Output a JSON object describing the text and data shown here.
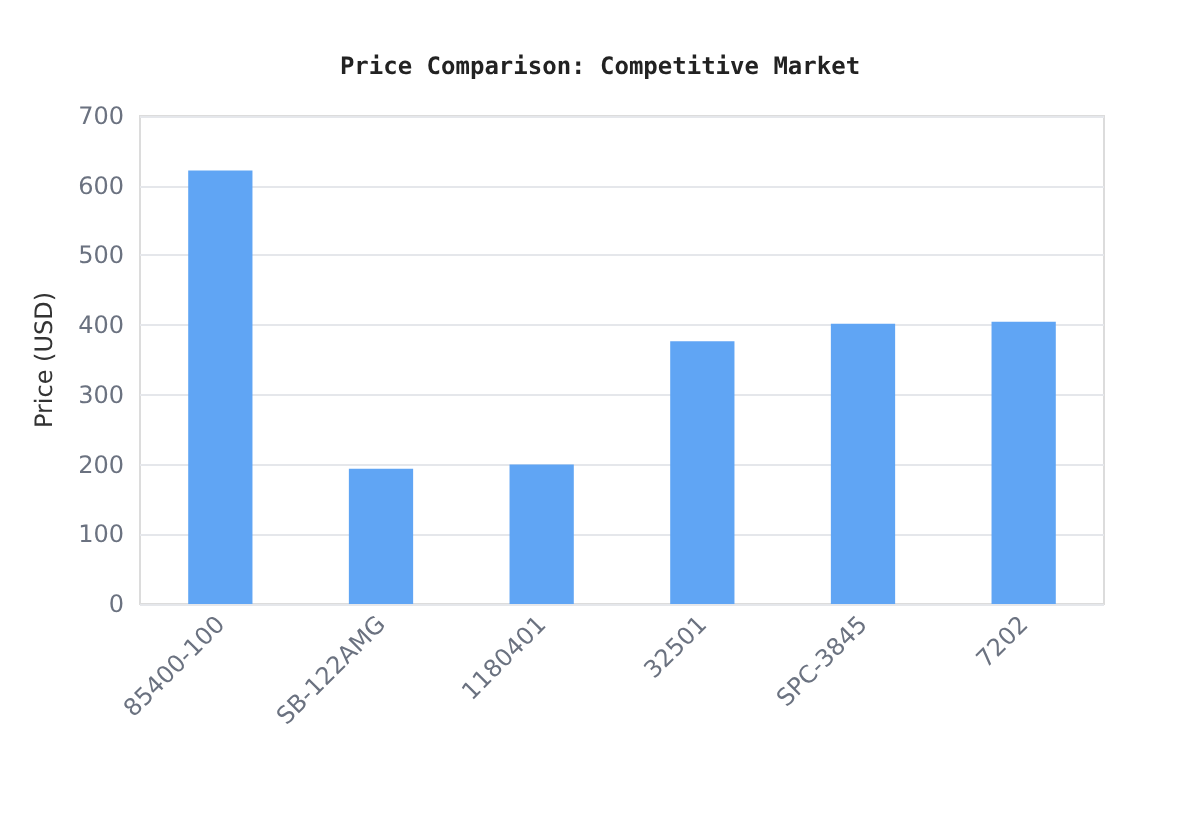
{
  "chart_data": {
    "type": "bar",
    "title": "Price Comparison: Competitive Market",
    "ylabel": "Price (USD)",
    "categories": [
      "85400-100",
      "SB-122AMG",
      "1180401",
      "32501",
      "SPC-3845",
      "7202"
    ],
    "values": [
      622,
      194,
      200,
      377,
      402,
      405
    ],
    "color": "#60a5f4",
    "ylim": [
      0,
      700
    ],
    "yticks": [
      0,
      100,
      200,
      300,
      400,
      500,
      600,
      700
    ],
    "grid": "y"
  }
}
